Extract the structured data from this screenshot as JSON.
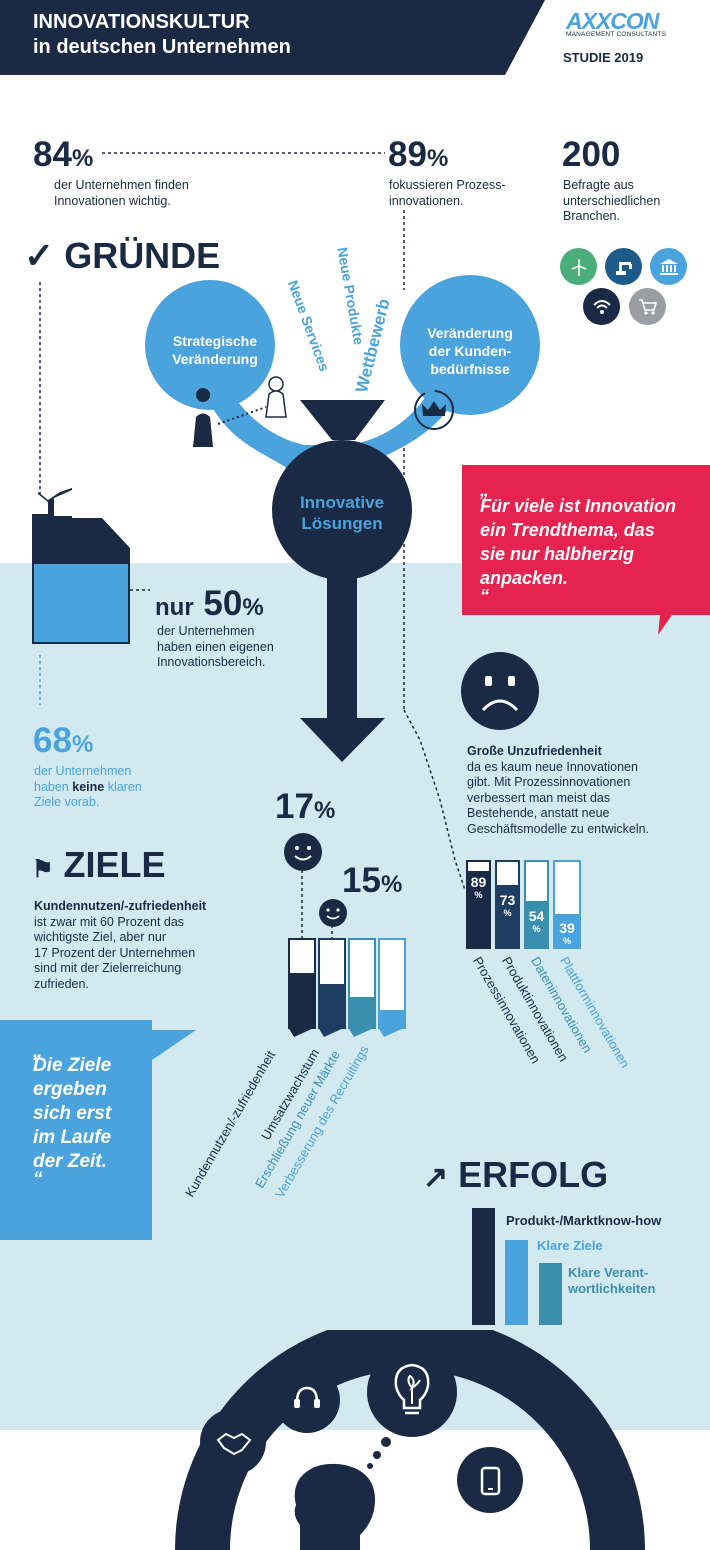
{
  "header": {
    "title_line1": "INNOVATIONSKULTUR",
    "title_line2": "in deutschen Unternehmen",
    "logo": "AXXCON",
    "logo_sub": "MANAGEMENT CONSULTANTS",
    "study": "STUDIE 2019",
    "colors": {
      "navy": "#1a2a44",
      "blue": "#4aa3dd",
      "red": "#e4234f",
      "light": "#d3e9f0",
      "teal": "#3b8fae"
    }
  },
  "stats": {
    "s84": {
      "value": "84",
      "unit": "%",
      "text1": "der Unternehmen finden",
      "text2": "Innovationen wichtig."
    },
    "s89": {
      "value": "89",
      "unit": "%",
      "text1": "fokussieren Prozess-",
      "text2": "innovationen."
    },
    "s200": {
      "value": "200",
      "text1": "Befragte aus",
      "text2": "unterschiedlichen",
      "text3": "Branchen."
    },
    "s50": {
      "prefix": "nur",
      "value": "50",
      "unit": "%",
      "text1": "der Unternehmen",
      "text2": "haben einen eigenen",
      "text3": "Innovationsbereich."
    },
    "s68": {
      "value": "68",
      "unit": "%",
      "text1": "der Unternehmen",
      "text2_pre": "haben",
      "text2_bold": "keine",
      "text2_post": "klaren",
      "text3": "Ziele vorab."
    }
  },
  "branch_icons": [
    "wind-turbine-icon",
    "industrial-robot-icon",
    "bank-icon",
    "wifi-icon",
    "shopping-cart-icon"
  ],
  "gruende": {
    "title": "GRÜNDE",
    "bubble_left": [
      "Strategische",
      "Veränderung"
    ],
    "bubble_right": [
      "Veränderung",
      "der Kunden-",
      "bedürfnisse"
    ],
    "rotated": [
      "Neue Services",
      "Neue Produkte",
      "Wettbewerb"
    ],
    "center": [
      "Innovative",
      "Lösungen"
    ]
  },
  "quote_red": {
    "open": "„",
    "lines": [
      "Für viele ist Innovation",
      "ein Trendthema, das",
      "sie nur halbherzig",
      "anpacken."
    ],
    "close": "“"
  },
  "unzufrieden": {
    "title": "Große Unzufriedenheit",
    "lines": [
      "da es kaum neue Innovationen",
      "gibt. Mit Prozessinnovationen",
      "verbessert man meist das",
      "Bestehende, anstatt neue",
      "Geschäftsmodelle zu entwickeln."
    ]
  },
  "innovation_bars": [
    {
      "label": "Prozessinnovationen",
      "value": 89,
      "display": "89"
    },
    {
      "label": "Produktinnovationen",
      "value": 73,
      "display": "73"
    },
    {
      "label": "Dateninnovationen",
      "value": 54,
      "display": "54"
    },
    {
      "label": "Plattforminnovationen",
      "value": 39,
      "display": "39"
    }
  ],
  "ziele": {
    "title": "ZIELE",
    "bold": "Kundennutzen/-zufriedenheit",
    "lines": [
      "ist zwar mit 60 Prozent das",
      "wichtigste Ziel, aber nur",
      "17 Prozent der Unternehmen",
      "sind mit der Zielerreichung",
      "zufrieden."
    ],
    "p17": {
      "value": "17",
      "unit": "%"
    },
    "p15": {
      "value": "15",
      "unit": "%"
    },
    "bars": [
      {
        "label": "Kundennutzen/-zufriedenheit",
        "value": 60
      },
      {
        "label": "Umsatzwachstum",
        "value": 50
      },
      {
        "label": "Erschließung neuer Märkte",
        "value": 35
      },
      {
        "label": "Verbesserung des Recruitings",
        "value": 20
      }
    ]
  },
  "quote_blue": {
    "open": "„",
    "lines": [
      "Die Ziele",
      "ergeben",
      "sich erst",
      "im Laufe",
      "der Zeit."
    ],
    "close": "“"
  },
  "erfolg": {
    "title": "ERFOLG",
    "items": [
      {
        "label": "Produkt-/Marktknow-how",
        "value": 100
      },
      {
        "label": "Klare Ziele",
        "value": 72
      },
      {
        "label": "Klare Verant-",
        "label2": "wortlichkeiten",
        "value": 53
      }
    ]
  },
  "bottom_icons": [
    "handshake-icon",
    "headset-icon",
    "lightbulb-icon",
    "smartphone-icon",
    "head-silhouette-icon"
  ]
}
